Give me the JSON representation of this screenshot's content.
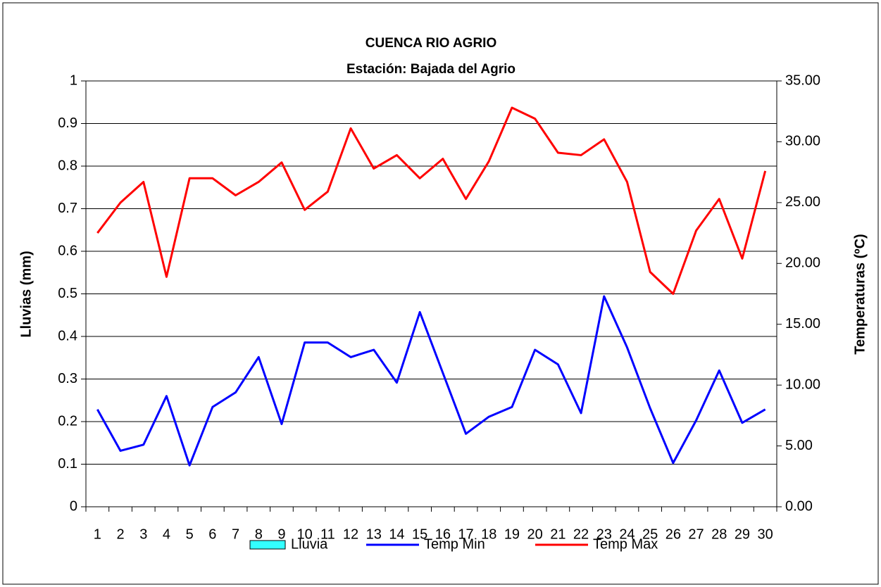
{
  "chart_data": {
    "type": "line",
    "title": "CUENCA RIO AGRIO",
    "subtitle": "Estación: Bajada del Agrio",
    "y_label": "Lluvias (mm)",
    "y2_label": "Temperaturas (ºC)",
    "categories": [
      "1",
      "2",
      "3",
      "4",
      "5",
      "6",
      "7",
      "8",
      "9",
      "10",
      "11",
      "12",
      "13",
      "14",
      "15",
      "16",
      "17",
      "18",
      "19",
      "20",
      "21",
      "22",
      "23",
      "24",
      "25",
      "26",
      "27",
      "28",
      "29",
      "30"
    ],
    "series": [
      {
        "name": "Lluvia",
        "type": "bar",
        "color": "#33ffff",
        "values": [
          0,
          0,
          0,
          0,
          0,
          0,
          0,
          0,
          0,
          0,
          0,
          0,
          0,
          0,
          0,
          0,
          0,
          0,
          0,
          0,
          0,
          0,
          0,
          0,
          0,
          0,
          0,
          0,
          0,
          0
        ]
      },
      {
        "name": "Temp Min",
        "type": "line",
        "axis": "y2",
        "color": "#0000ff",
        "values": [
          8.0,
          4.6,
          5.1,
          9.1,
          3.4,
          8.2,
          9.4,
          12.3,
          6.8,
          13.5,
          13.5,
          12.3,
          12.9,
          10.2,
          16.0,
          11.0,
          6.0,
          7.4,
          8.2,
          12.9,
          11.7,
          7.7,
          17.3,
          13.1,
          8.1,
          3.6,
          7.1,
          11.2,
          6.9,
          8.0
        ]
      },
      {
        "name": "Temp Max",
        "type": "line",
        "axis": "y2",
        "color": "#ff0000",
        "values": [
          22.5,
          25.0,
          26.7,
          18.9,
          27.0,
          27.0,
          25.6,
          26.7,
          28.3,
          24.4,
          25.9,
          31.1,
          27.8,
          28.9,
          27.0,
          28.6,
          25.3,
          28.4,
          32.8,
          31.9,
          29.1,
          28.9,
          30.2,
          26.7,
          19.3,
          17.5,
          22.7,
          25.3,
          20.4,
          27.6
        ]
      }
    ],
    "ylim": [
      0,
      1
    ],
    "yticks": [
      0,
      0.1,
      0.2,
      0.3,
      0.4,
      0.5,
      0.6,
      0.7,
      0.8,
      0.9,
      1
    ],
    "y2lim": [
      0,
      35
    ],
    "y2ticks": [
      {
        "value": 0,
        "label": "0.00"
      },
      {
        "value": 5,
        "label": "5.00"
      },
      {
        "value": 10,
        "label": "10.00"
      },
      {
        "value": 15,
        "label": "15.00"
      },
      {
        "value": 20,
        "label": "20.00"
      },
      {
        "value": 25,
        "label": "25.00"
      },
      {
        "value": 30,
        "label": "30.00"
      },
      {
        "value": 35,
        "label": "35.00"
      }
    ],
    "grid": true,
    "legend": "bottom"
  }
}
